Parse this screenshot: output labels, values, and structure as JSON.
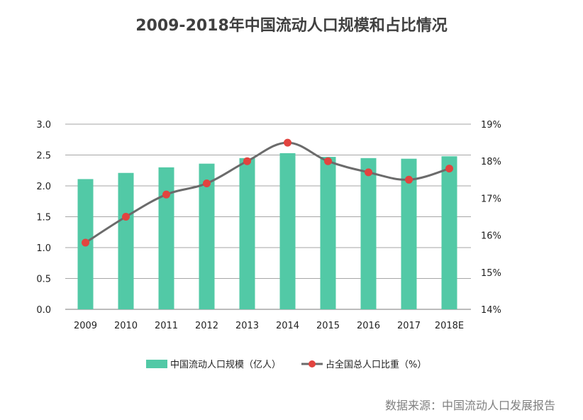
{
  "colors": {
    "bar": "#52c9a6",
    "line": "#6b6b6b",
    "marker": "#e2443f",
    "grid": "#a6a6a6",
    "title": "#404040",
    "source": "#7f7f7f"
  },
  "chart_data": {
    "type": "bar",
    "title": "2009-2018年中国流动人口规模和占比情况",
    "categories": [
      "2009",
      "2010",
      "2011",
      "2012",
      "2013",
      "2014",
      "2015",
      "2016",
      "2017",
      "2018E"
    ],
    "series": [
      {
        "name": "中国流动人口规模（亿人）",
        "type": "bar",
        "axis": "left",
        "values": [
          2.11,
          2.21,
          2.3,
          2.36,
          2.45,
          2.53,
          2.47,
          2.45,
          2.44,
          2.48
        ]
      },
      {
        "name": "占全国总人口比重（%）",
        "type": "line",
        "axis": "right",
        "values": [
          15.8,
          16.5,
          17.1,
          17.4,
          18.0,
          18.5,
          18.0,
          17.7,
          17.5,
          17.8
        ]
      }
    ],
    "y_left": {
      "ylim": [
        0,
        3.0
      ],
      "ticks": [
        "0.0",
        "0.5",
        "1.0",
        "1.5",
        "2.0",
        "2.5",
        "3.0"
      ]
    },
    "y_right": {
      "ylim": [
        14,
        19
      ],
      "ticks": [
        "14%",
        "15%",
        "16%",
        "17%",
        "18%",
        "19%"
      ]
    },
    "grid": true,
    "legend_position": "bottom"
  },
  "source": "数据来源：中国流动人口发展报告"
}
